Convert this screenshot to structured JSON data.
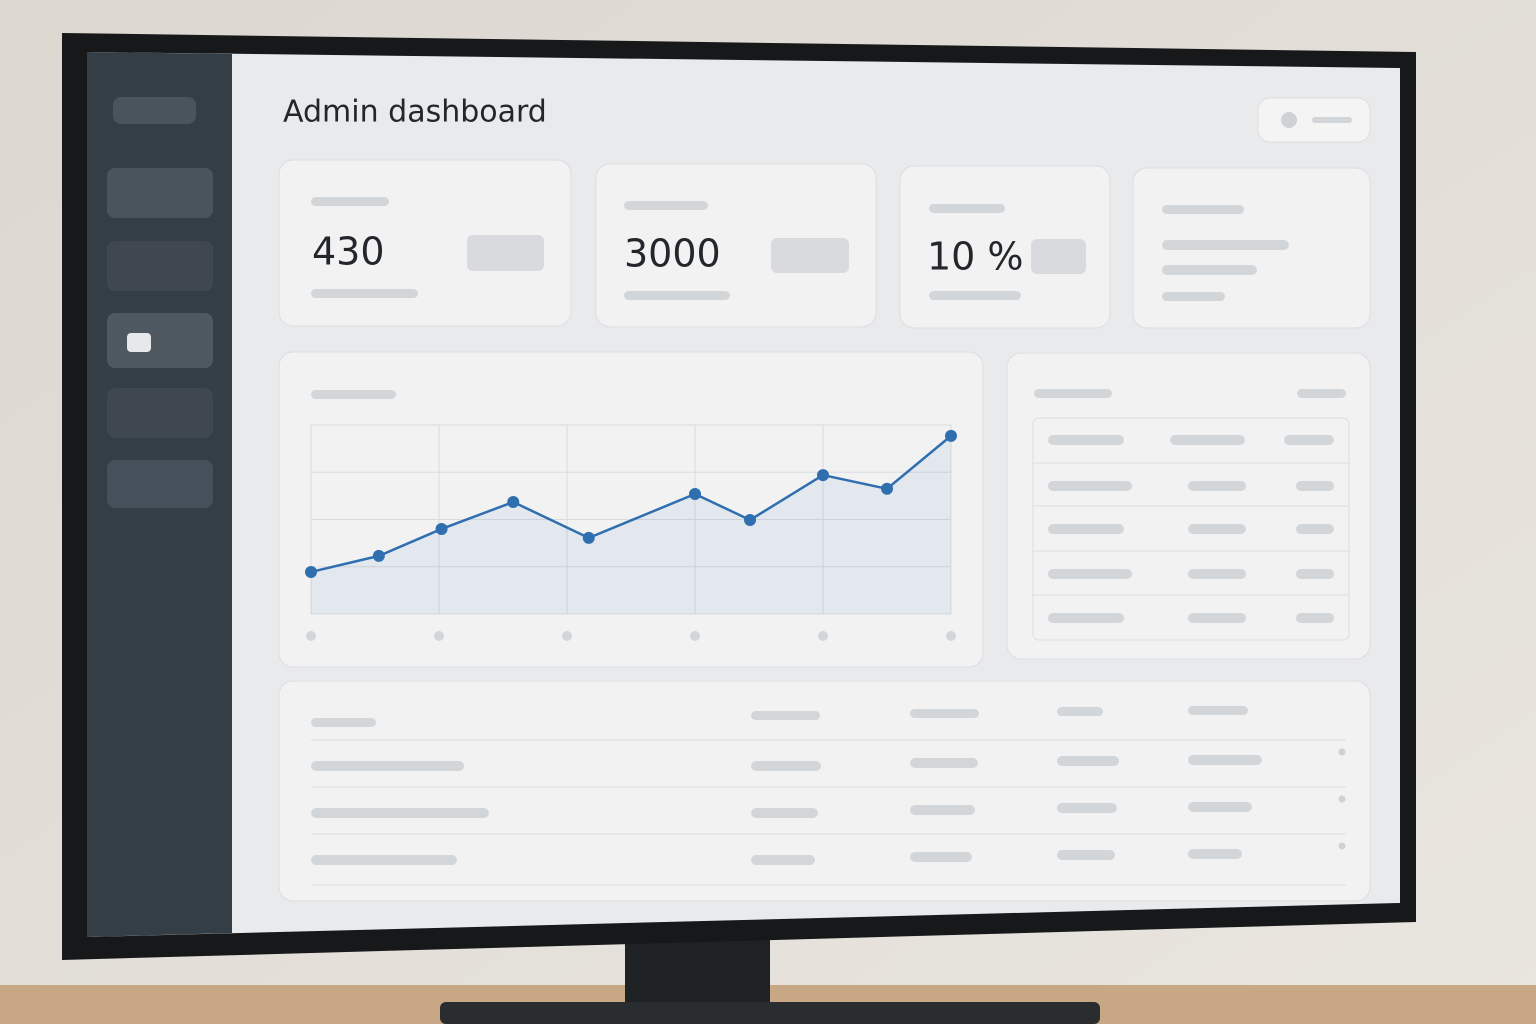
{
  "header": {
    "title": "Admin dashboard"
  },
  "kpis": [
    430,
    3000,
    "10 %"
  ],
  "chart_data": {
    "type": "line",
    "x": [
      0,
      0.53,
      1.02,
      1.58,
      2.17,
      3.0,
      3.43,
      4.0,
      4.5,
      5.0
    ],
    "values": [
      0.89,
      1.23,
      1.8,
      2.37,
      1.61,
      2.54,
      1.99,
      2.94,
      2.65,
      3.77
    ],
    "xlim": [
      0,
      5
    ],
    "ylim": [
      0,
      4
    ],
    "xticks": [
      0,
      1,
      2,
      3,
      4,
      5
    ],
    "yticks": [
      0,
      1,
      2,
      3,
      4
    ],
    "color": "#2f6fb0",
    "grid": true
  }
}
